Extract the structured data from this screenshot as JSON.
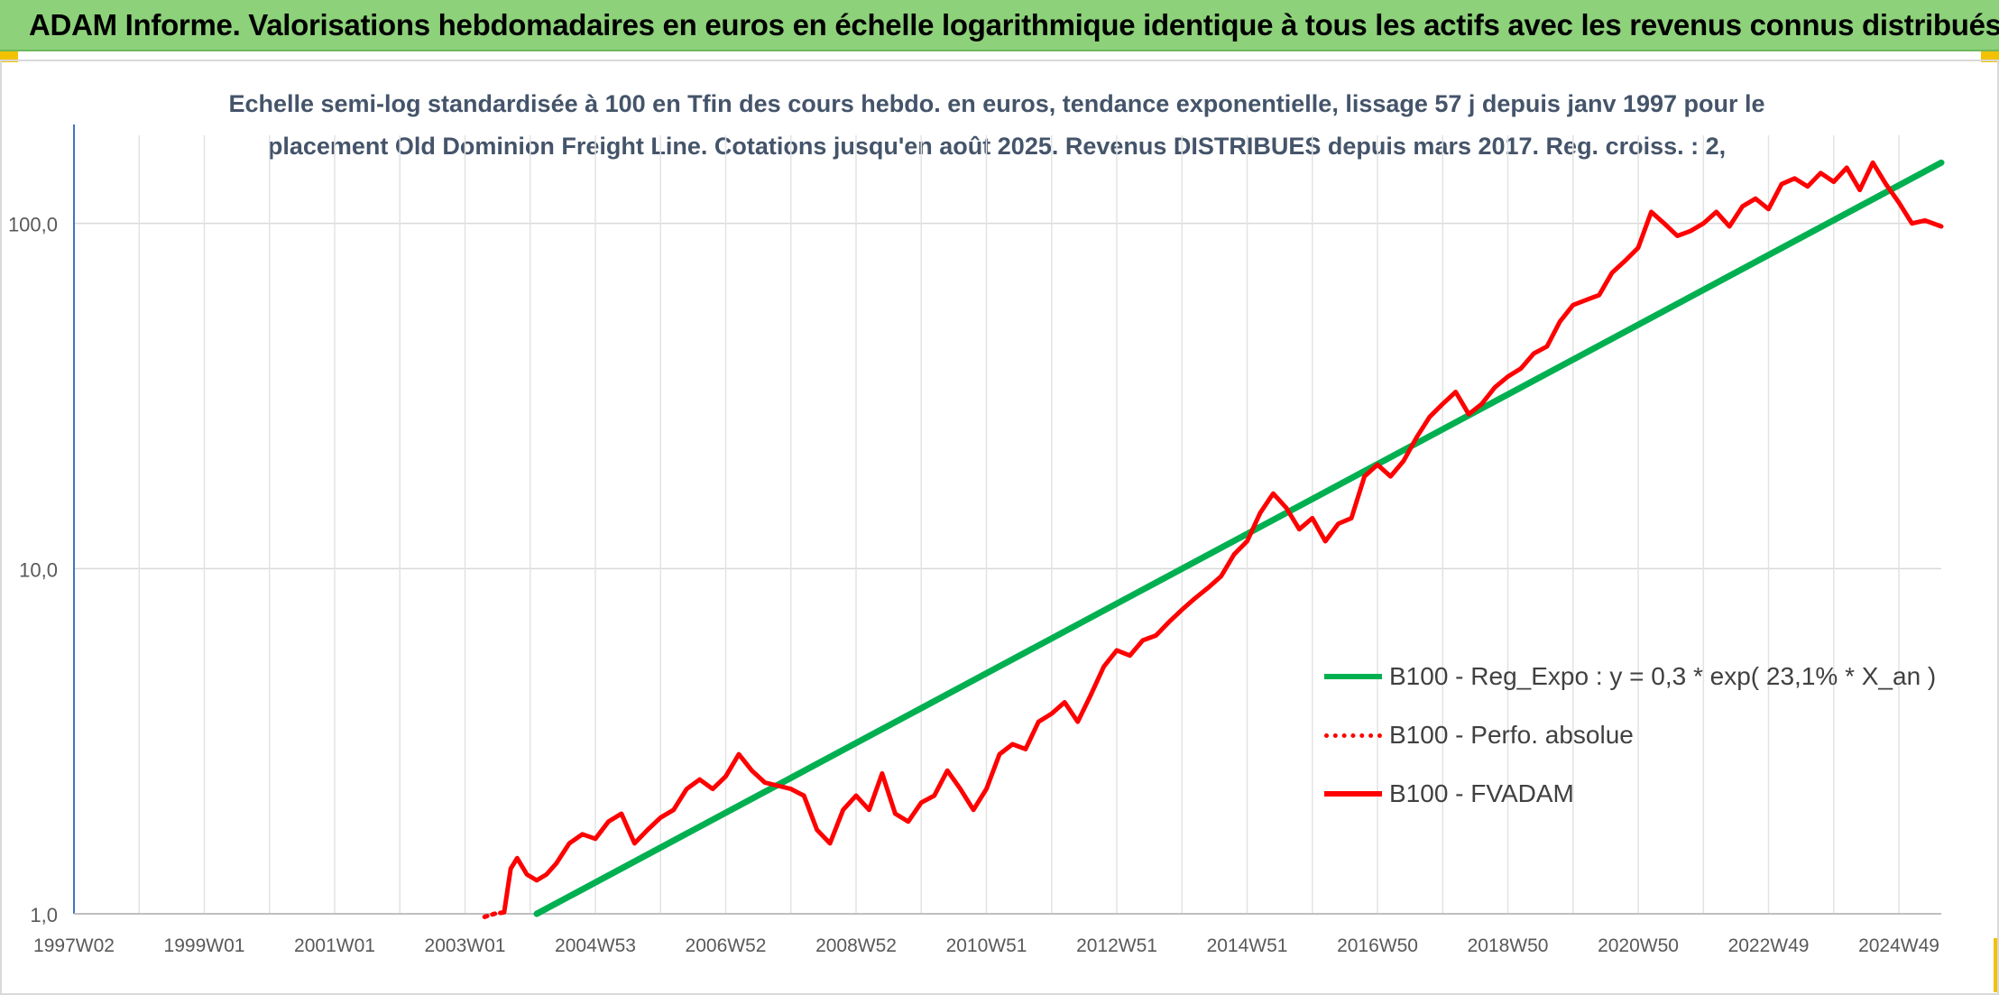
{
  "banner": {
    "title": "ADAM Informe. Valorisations hebdomadaires en euros en échelle logarithmique identique à tous les actifs avec les revenus connus distribués",
    "background": "#8dd17a"
  },
  "chart_data": {
    "type": "line",
    "title_lines": [
      "Echelle semi-log standardisée à 100 en Tfin des cours hebdo. en euros, tendance exponentielle, lissage 57 j depuis janv 1997 pour le",
      "placement Old Dominion Freight Line. Cotations jusqu'en août 2025. Revenus DISTRIBUES depuis mars 2017. Reg. croiss. : 2,"
    ],
    "y_scale": "log",
    "ylim": [
      1,
      180
    ],
    "xlim": [
      1997.0,
      2025.65
    ],
    "y_ticks": [
      {
        "value": 1,
        "label": "1,0"
      },
      {
        "value": 10,
        "label": "10,0"
      },
      {
        "value": 100,
        "label": "100,0"
      }
    ],
    "x_ticks": [
      {
        "pos": 1997.0,
        "label": "1997W02"
      },
      {
        "pos": 1999.0,
        "label": "1999W01"
      },
      {
        "pos": 2001.0,
        "label": "2001W01"
      },
      {
        "pos": 2003.0,
        "label": "2003W01"
      },
      {
        "pos": 2005.0,
        "label": "2004W53"
      },
      {
        "pos": 2007.0,
        "label": "2006W52"
      },
      {
        "pos": 2009.0,
        "label": "2008W52"
      },
      {
        "pos": 2011.0,
        "label": "2010W51"
      },
      {
        "pos": 2013.0,
        "label": "2012W51"
      },
      {
        "pos": 2015.0,
        "label": "2014W51"
      },
      {
        "pos": 2017.0,
        "label": "2016W50"
      },
      {
        "pos": 2019.0,
        "label": "2018W50"
      },
      {
        "pos": 2021.0,
        "label": "2020W50"
      },
      {
        "pos": 2023.0,
        "label": "2022W49"
      },
      {
        "pos": 2025.0,
        "label": "2024W49"
      }
    ],
    "grid": {
      "horizontal": true,
      "vertical": true
    },
    "legend_position": "bottom-right",
    "series": [
      {
        "name": "B100 - Reg_Expo : y = 0,3 * exp( 23,1% *  X_an )",
        "color": "#00b050",
        "style": "solid",
        "x": [
          2004.1,
          2025.65
        ],
        "y": [
          1.0,
          150
        ]
      },
      {
        "name": "B100 - Perfo. absolue",
        "color": "#ff0000",
        "style": "dotted",
        "x": [
          2003.3,
          2003.45,
          2003.6
        ],
        "y": [
          0.98,
          1.0,
          1.01
        ]
      },
      {
        "name": "B100 - FVADAM",
        "color": "#ff0000",
        "style": "solid",
        "x": [
          2003.6,
          2003.7,
          2003.8,
          2003.95,
          2004.1,
          2004.25,
          2004.4,
          2004.6,
          2004.8,
          2005.0,
          2005.2,
          2005.4,
          2005.6,
          2005.8,
          2006.0,
          2006.2,
          2006.4,
          2006.6,
          2006.8,
          2007.0,
          2007.2,
          2007.4,
          2007.6,
          2007.8,
          2008.0,
          2008.2,
          2008.4,
          2008.6,
          2008.8,
          2009.0,
          2009.2,
          2009.4,
          2009.6,
          2009.8,
          2010.0,
          2010.2,
          2010.4,
          2010.6,
          2010.8,
          2011.0,
          2011.2,
          2011.4,
          2011.6,
          2011.8,
          2012.0,
          2012.2,
          2012.4,
          2012.6,
          2012.8,
          2013.0,
          2013.2,
          2013.4,
          2013.6,
          2013.8,
          2014.0,
          2014.2,
          2014.4,
          2014.6,
          2014.8,
          2015.0,
          2015.2,
          2015.4,
          2015.6,
          2015.8,
          2016.0,
          2016.2,
          2016.4,
          2016.6,
          2016.8,
          2017.0,
          2017.2,
          2017.4,
          2017.6,
          2017.8,
          2018.0,
          2018.2,
          2018.4,
          2018.6,
          2018.8,
          2019.0,
          2019.2,
          2019.4,
          2019.6,
          2019.8,
          2020.0,
          2020.2,
          2020.4,
          2020.6,
          2020.8,
          2021.0,
          2021.2,
          2021.4,
          2021.6,
          2021.8,
          2022.0,
          2022.2,
          2022.4,
          2022.6,
          2022.8,
          2023.0,
          2023.2,
          2023.4,
          2023.6,
          2023.8,
          2024.0,
          2024.2,
          2024.4,
          2024.6,
          2024.8,
          2025.0,
          2025.2,
          2025.4,
          2025.65
        ],
        "y": [
          1.01,
          1.35,
          1.45,
          1.3,
          1.25,
          1.3,
          1.4,
          1.6,
          1.7,
          1.65,
          1.85,
          1.95,
          1.6,
          1.75,
          1.9,
          2.0,
          2.3,
          2.45,
          2.3,
          2.5,
          2.9,
          2.6,
          2.4,
          2.35,
          2.3,
          2.2,
          1.75,
          1.6,
          2.0,
          2.2,
          2.0,
          2.55,
          1.95,
          1.85,
          2.1,
          2.2,
          2.6,
          2.3,
          2.0,
          2.3,
          2.9,
          3.1,
          3.0,
          3.6,
          3.8,
          4.1,
          3.6,
          4.3,
          5.2,
          5.8,
          5.6,
          6.2,
          6.4,
          7.0,
          7.6,
          8.2,
          8.8,
          9.5,
          11.0,
          12.0,
          14.5,
          16.5,
          15.0,
          13.0,
          14.0,
          12.0,
          13.5,
          14.0,
          18.5,
          20.0,
          18.5,
          20.5,
          24.0,
          27.5,
          30.0,
          32.5,
          28.0,
          30.0,
          33.5,
          36.0,
          38.0,
          42.0,
          44.0,
          52.0,
          58.0,
          60.0,
          62.0,
          72.0,
          78.0,
          85.0,
          108.0,
          100.0,
          92.0,
          95.0,
          100.0,
          108.0,
          98.0,
          112.0,
          118.0,
          110.0,
          130.0,
          135.0,
          128.0,
          140.0,
          132.0,
          145.0,
          125.0,
          150.0,
          130.0,
          115.0,
          100.0,
          102.0,
          98.0
        ]
      }
    ]
  }
}
